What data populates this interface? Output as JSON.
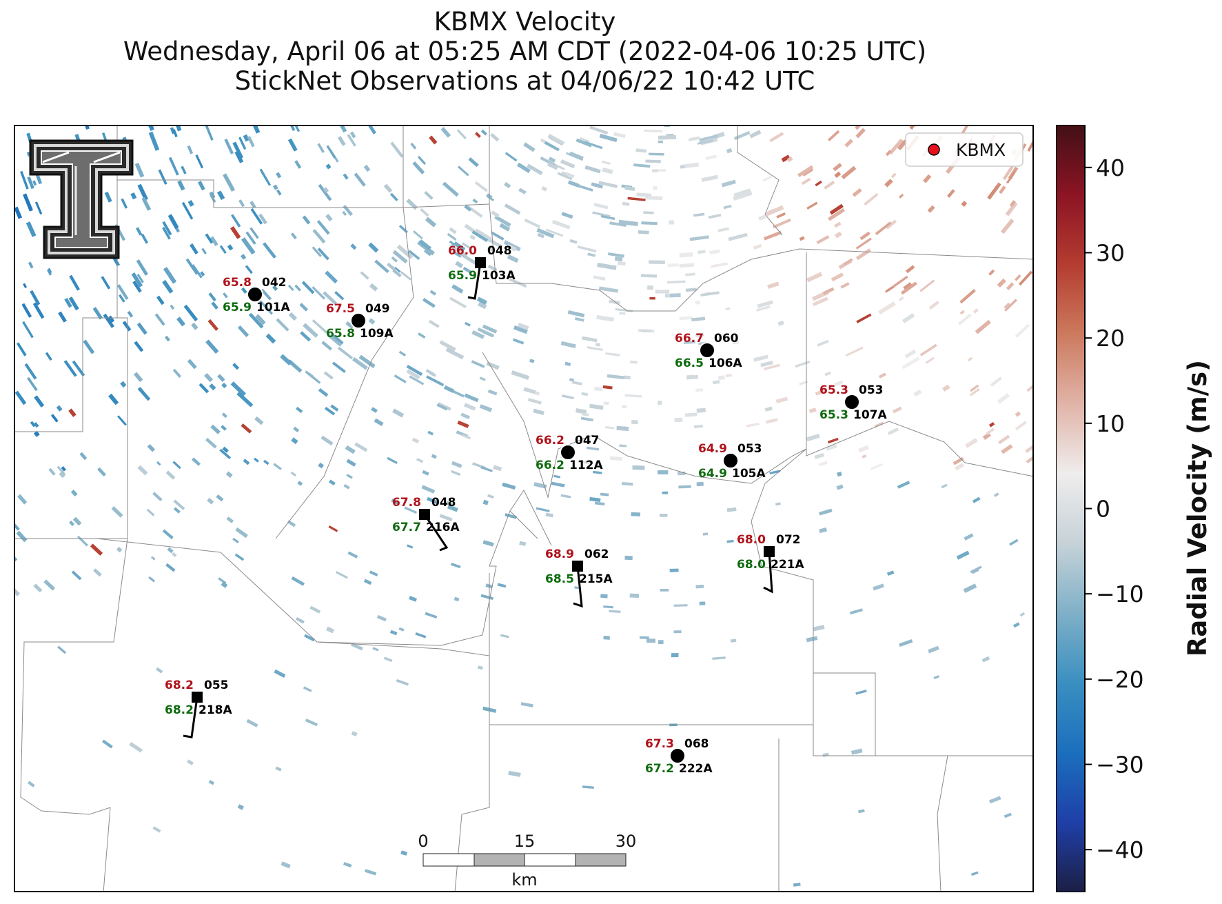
{
  "title": {
    "line1": "KBMX Velocity",
    "line2": "Wednesday, April 06 at 05:25 AM CDT (2022-04-06 10:25 UTC)",
    "line3": "StickNet Observations at 04/06/22 10:42 UTC"
  },
  "legend": {
    "label": "KBMX",
    "marker_color": "#e8101a"
  },
  "colorbar": {
    "label": "Radial Velocity (m/s)",
    "min": -45,
    "max": 45,
    "ticks": [
      40,
      30,
      20,
      10,
      0,
      -10,
      -20,
      -30,
      -40
    ],
    "tick_labels": [
      "40",
      "30",
      "20",
      "10",
      "0",
      "−10",
      "−20",
      "−30",
      "−40"
    ],
    "colors": [
      "#1c1f44",
      "#1f3fa8",
      "#1b6fbd",
      "#3a8fc0",
      "#7fb0c8",
      "#c6d2d8",
      "#efeded",
      "#e1b4a8",
      "#cc7a5e",
      "#b43c30",
      "#8c1424",
      "#421016"
    ]
  },
  "scale_bar": {
    "labels": [
      "0",
      "15",
      "30"
    ],
    "unit": "km"
  },
  "logo": {
    "name": "texas-tech-logo"
  },
  "stations": [
    {
      "id": "101A",
      "temp": "65.8",
      "dew": "65.9",
      "dir": "042",
      "marker": "circle"
    },
    {
      "id": "109A",
      "temp": "67.5",
      "dew": "65.8",
      "dir": "049",
      "marker": "circle"
    },
    {
      "id": "103A",
      "temp": "66.0",
      "dew": "65.9",
      "dir": "048",
      "marker": "square"
    },
    {
      "id": "106A",
      "temp": "66.7",
      "dew": "66.5",
      "dir": "060",
      "marker": "circle"
    },
    {
      "id": "107A",
      "temp": "65.3",
      "dew": "65.3",
      "dir": "053",
      "marker": "circle"
    },
    {
      "id": "112A",
      "temp": "66.2",
      "dew": "66.2",
      "dir": "047",
      "marker": "circle"
    },
    {
      "id": "105A",
      "temp": "64.9",
      "dew": "64.9",
      "dir": "053",
      "marker": "circle"
    },
    {
      "id": "216A",
      "temp": "67.8",
      "dew": "67.7",
      "dir": "048",
      "marker": "square"
    },
    {
      "id": "221A",
      "temp": "68.0",
      "dew": "68.0",
      "dir": "072",
      "marker": "square"
    },
    {
      "id": "215A",
      "temp": "68.9",
      "dew": "68.5",
      "dir": "062",
      "marker": "square"
    },
    {
      "id": "218A",
      "temp": "68.2",
      "dew": "68.2",
      "dir": "055",
      "marker": "square"
    },
    {
      "id": "222A",
      "temp": "67.3",
      "dew": "67.2",
      "dir": "068",
      "marker": "circle"
    }
  ]
}
